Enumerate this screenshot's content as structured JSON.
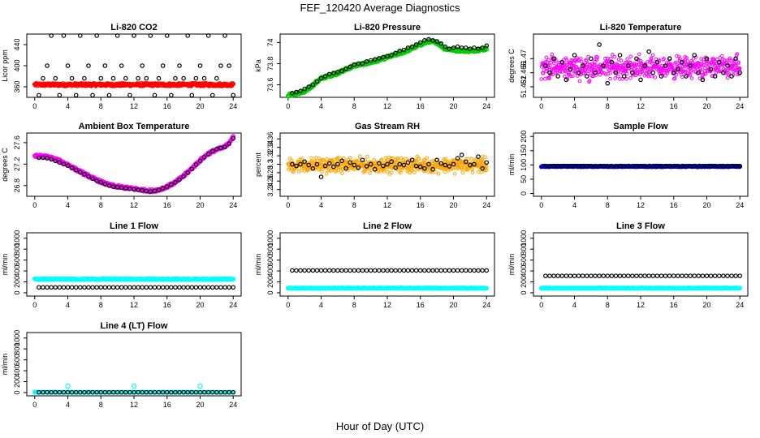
{
  "figure": {
    "title": "FEF_120420  Average Diagnostics",
    "xlabel": "Hour of Day (UTC)"
  },
  "chart_data": [
    {
      "type": "scatter",
      "title": "Li-820 CO2",
      "xlabel": "",
      "ylabel": "Licor ppm",
      "xlim": [
        0,
        24
      ],
      "ylim": [
        340,
        460
      ],
      "xticks": [
        0,
        4,
        8,
        12,
        16,
        20,
        24
      ],
      "yticks": [
        360,
        400,
        440
      ],
      "series": [
        {
          "name": "raw",
          "color": "#ff0000",
          "style": "dense",
          "band_center": 364,
          "band_width": 5
        },
        {
          "name": "average",
          "color": "#000000",
          "style": "circles",
          "x": [
            0.5,
            1,
            1.5,
            2,
            2.5,
            3,
            3.5,
            4,
            4.5,
            5,
            5.5,
            6,
            6.5,
            7,
            7.5,
            8,
            8.5,
            9,
            9.5,
            10,
            10.5,
            11,
            11.5,
            12,
            12.5,
            13,
            13.5,
            14,
            14.5,
            15,
            15.5,
            16,
            16.5,
            17,
            17.5,
            18,
            18.5,
            19,
            19.5,
            20,
            20.5,
            21,
            21.5,
            22,
            22.5,
            23,
            23.5,
            24
          ],
          "y": [
            344,
            376,
            400,
            457,
            376,
            344,
            457,
            400,
            376,
            344,
            457,
            376,
            400,
            344,
            457,
            376,
            400,
            344,
            376,
            457,
            400,
            376,
            344,
            457,
            376,
            400,
            376,
            457,
            344,
            376,
            400,
            457,
            344,
            376,
            400,
            376,
            457,
            344,
            376,
            400,
            376,
            457,
            344,
            376,
            400,
            457,
            400,
            344
          ]
        }
      ]
    },
    {
      "type": "scatter",
      "title": "Li-820 Pressure",
      "xlabel": "",
      "ylabel": "kPa",
      "xlim": [
        0,
        24
      ],
      "ylim": [
        73.48,
        74.08
      ],
      "xticks": [
        0,
        4,
        8,
        12,
        16,
        20,
        24
      ],
      "yticks": [
        73.6,
        73.8,
        74.0
      ],
      "series": [
        {
          "name": "raw",
          "color": "#00cc00",
          "style": "dense",
          "x": [
            0,
            2,
            4,
            6,
            8,
            10,
            12,
            14,
            16,
            17,
            18,
            19,
            20,
            22,
            24
          ],
          "y": [
            73.5,
            73.53,
            73.66,
            73.71,
            73.78,
            73.81,
            73.86,
            73.91,
            73.98,
            74.01,
            74.0,
            73.94,
            73.93,
            73.92,
            73.94
          ]
        },
        {
          "name": "average",
          "color": "#000000",
          "style": "circles",
          "x": [
            0.5,
            1,
            1.5,
            2,
            2.5,
            3,
            3.5,
            4,
            4.5,
            5,
            5.5,
            6,
            6.5,
            7,
            7.5,
            8,
            8.5,
            9,
            9.5,
            10,
            10.5,
            11,
            11.5,
            12,
            12.5,
            13,
            13.5,
            14,
            14.5,
            15,
            15.5,
            16,
            16.5,
            17,
            17.5,
            18,
            18.5,
            19,
            19.5,
            20,
            20.5,
            21,
            21.5,
            22,
            22.5,
            23,
            23.5,
            24
          ],
          "y": [
            73.52,
            73.53,
            73.54,
            73.56,
            73.58,
            73.6,
            73.63,
            73.66,
            73.68,
            73.7,
            73.71,
            73.72,
            73.73,
            73.75,
            73.77,
            73.79,
            73.8,
            73.8,
            73.82,
            73.83,
            73.84,
            73.85,
            73.86,
            73.87,
            73.88,
            73.9,
            73.92,
            73.93,
            73.95,
            73.96,
            73.98,
            74.0,
            74.02,
            74.03,
            74.02,
            74.01,
            73.99,
            73.96,
            73.94,
            73.95,
            73.96,
            73.95,
            73.95,
            73.94,
            73.95,
            73.94,
            73.95,
            73.97
          ]
        }
      ]
    },
    {
      "type": "scatter",
      "title": "Li-820 Temperature",
      "xlabel": "",
      "ylabel": "degrees C",
      "xlim": [
        0,
        24
      ],
      "ylim": [
        51.459,
        51.477
      ],
      "xticks": [
        0,
        4,
        8,
        12,
        16,
        20,
        24
      ],
      "yticks": [
        51.462,
        51.466,
        51.47
      ],
      "series": [
        {
          "name": "raw",
          "color": "#ff00ff",
          "style": "scattercloud",
          "center": 51.4675,
          "spread": 0.004
        },
        {
          "name": "average",
          "color": "#000000",
          "style": "circles",
          "x": [
            0.5,
            1,
            1.5,
            2,
            2.5,
            3,
            3.5,
            4,
            4.5,
            5,
            5.5,
            6,
            6.5,
            7,
            7.5,
            8,
            8.5,
            9,
            9.5,
            10,
            10.5,
            11,
            11.5,
            12,
            12.5,
            13,
            13.5,
            14,
            14.5,
            15,
            15.5,
            16,
            16.5,
            17,
            17.5,
            18,
            18.5,
            19,
            19.5,
            20,
            20.5,
            21,
            21.5,
            22,
            22.5,
            23,
            23.5,
            24
          ],
          "y": [
            51.468,
            51.466,
            51.47,
            51.465,
            51.469,
            51.464,
            51.467,
            51.471,
            51.466,
            51.468,
            51.465,
            51.47,
            51.466,
            51.474,
            51.468,
            51.463,
            51.469,
            51.466,
            51.471,
            51.465,
            51.468,
            51.466,
            51.47,
            51.464,
            51.468,
            51.472,
            51.466,
            51.469,
            51.465,
            51.468,
            51.47,
            51.466,
            51.467,
            51.469,
            51.465,
            51.468,
            51.471,
            51.466,
            51.464,
            51.47,
            51.467,
            51.465,
            51.469,
            51.466,
            51.468,
            51.465,
            51.47,
            51.466
          ]
        }
      ]
    },
    {
      "type": "scatter",
      "title": "Ambient Box Temperature",
      "xlabel": "",
      "ylabel": "degrees C",
      "xlim": [
        0,
        24
      ],
      "ylim": [
        26.6,
        27.78
      ],
      "xticks": [
        0,
        4,
        8,
        12,
        16,
        20,
        24
      ],
      "yticks": [
        26.8,
        27.2,
        27.6
      ],
      "series": [
        {
          "name": "raw",
          "color": "#ff00ff",
          "style": "dense",
          "x": [
            0,
            1,
            2,
            3,
            4,
            5,
            6,
            7,
            8,
            9,
            10,
            11,
            12,
            13,
            14,
            15,
            16,
            17,
            18,
            19,
            20,
            21,
            22,
            23,
            24
          ],
          "y": [
            27.35,
            27.35,
            27.32,
            27.26,
            27.19,
            27.1,
            27.02,
            26.94,
            26.87,
            26.81,
            26.78,
            26.76,
            26.74,
            26.72,
            26.7,
            26.72,
            26.78,
            26.86,
            26.98,
            27.12,
            27.27,
            27.4,
            27.47,
            27.52,
            27.7
          ]
        },
        {
          "name": "average",
          "color": "#000000",
          "style": "circles",
          "x": [
            0.5,
            1,
            1.5,
            2,
            2.5,
            3,
            3.5,
            4,
            4.5,
            5,
            5.5,
            6,
            6.5,
            7,
            7.5,
            8,
            8.5,
            9,
            9.5,
            10,
            10.5,
            11,
            11.5,
            12,
            12.5,
            13,
            13.5,
            14,
            14.5,
            15,
            15.5,
            16,
            16.5,
            17,
            17.5,
            18,
            18.5,
            19,
            19.5,
            20,
            20.5,
            21,
            21.5,
            22,
            22.5,
            23,
            23.5,
            24
          ],
          "y": [
            27.32,
            27.32,
            27.31,
            27.29,
            27.26,
            27.23,
            27.2,
            27.17,
            27.13,
            27.09,
            27.05,
            27.01,
            26.97,
            26.93,
            26.89,
            26.86,
            26.83,
            26.8,
            26.78,
            26.77,
            26.76,
            26.75,
            26.74,
            26.73,
            26.72,
            26.71,
            26.7,
            26.69,
            26.7,
            26.72,
            26.75,
            26.78,
            26.82,
            26.86,
            26.91,
            26.97,
            27.04,
            27.11,
            27.19,
            27.26,
            27.33,
            27.39,
            27.44,
            27.48,
            27.5,
            27.52,
            27.58,
            27.68
          ]
        }
      ]
    },
    {
      "type": "scatter",
      "title": "Gas Stream RH",
      "xlabel": "",
      "ylabel": "percent",
      "xlim": [
        0,
        24
      ],
      "ylim": [
        3.224,
        3.374
      ],
      "xticks": [
        0,
        4,
        8,
        12,
        16,
        20,
        24
      ],
      "yticks": [
        3.24,
        3.26,
        3.28,
        3.3,
        3.32,
        3.34,
        3.36
      ],
      "series": [
        {
          "name": "raw",
          "color": "#ffa500",
          "style": "scattercloud",
          "center": 3.298,
          "spread": 0.022
        },
        {
          "name": "average",
          "color": "#000000",
          "style": "circles",
          "x": [
            0.5,
            1,
            1.5,
            2,
            2.5,
            3,
            3.5,
            4,
            4.5,
            5,
            5.5,
            6,
            6.5,
            7,
            7.5,
            8,
            8.5,
            9,
            9.5,
            10,
            10.5,
            11,
            11.5,
            12,
            12.5,
            13,
            13.5,
            14,
            14.5,
            15,
            15.5,
            16,
            16.5,
            17,
            17.5,
            18,
            18.5,
            19,
            19.5,
            20,
            20.5,
            21,
            21.5,
            22,
            22.5,
            23,
            23.5,
            24
          ],
          "y": [
            3.3,
            3.296,
            3.3,
            3.306,
            3.298,
            3.29,
            3.3,
            3.27,
            3.296,
            3.302,
            3.294,
            3.3,
            3.308,
            3.29,
            3.304,
            3.298,
            3.292,
            3.31,
            3.295,
            3.3,
            3.288,
            3.302,
            3.296,
            3.3,
            3.306,
            3.292,
            3.3,
            3.298,
            3.304,
            3.31,
            3.296,
            3.294,
            3.29,
            3.3,
            3.288,
            3.31,
            3.302,
            3.298,
            3.295,
            3.3,
            3.314,
            3.322,
            3.306,
            3.298,
            3.3,
            3.318,
            3.29,
            3.304
          ]
        }
      ]
    },
    {
      "type": "scatter",
      "title": "Sample Flow",
      "xlabel": "",
      "ylabel": "ml/min",
      "xlim": [
        0,
        24
      ],
      "ylim": [
        -10,
        212
      ],
      "xticks": [
        0,
        4,
        8,
        12,
        16,
        20,
        24
      ],
      "yticks": [
        0,
        50,
        100,
        150,
        200
      ],
      "series": [
        {
          "name": "raw",
          "color": "#0000cc",
          "style": "dense",
          "band_center": 95,
          "band_width": 3
        },
        {
          "name": "average",
          "color": "#000000",
          "style": "circles",
          "constant": 96
        }
      ]
    },
    {
      "type": "scatter",
      "title": "Line 1 Flow",
      "xlabel": "",
      "ylabel": "ml/min",
      "xlim": [
        0,
        24
      ],
      "ylim": [
        -60,
        1100
      ],
      "xticks": [
        0,
        4,
        8,
        12,
        16,
        20,
        24
      ],
      "yticks": [
        0,
        200,
        400,
        600,
        800,
        1000
      ],
      "series": [
        {
          "name": "raw_a",
          "color": "#00ffff",
          "style": "dense",
          "band_center": 250,
          "band_width": 20
        },
        {
          "name": "average",
          "color": "#000000",
          "style": "circles",
          "constant": 100
        }
      ]
    },
    {
      "type": "scatter",
      "title": "Line 2 Flow",
      "xlabel": "",
      "ylabel": "ml/min",
      "xlim": [
        0,
        24
      ],
      "ylim": [
        -60,
        1100
      ],
      "xticks": [
        0,
        4,
        8,
        12,
        16,
        20,
        24
      ],
      "yticks": [
        0,
        200,
        400,
        600,
        800,
        1000
      ],
      "series": [
        {
          "name": "raw_a",
          "color": "#00ffff",
          "style": "dense",
          "band_center": 85,
          "band_width": 10
        },
        {
          "name": "average",
          "color": "#000000",
          "style": "circles",
          "constant": 410
        }
      ]
    },
    {
      "type": "scatter",
      "title": "Line 3 Flow",
      "xlabel": "",
      "ylabel": "ml/min",
      "xlim": [
        0,
        24
      ],
      "ylim": [
        -60,
        1100
      ],
      "xticks": [
        0,
        4,
        8,
        12,
        16,
        20,
        24
      ],
      "yticks": [
        0,
        200,
        400,
        600,
        800,
        1000
      ],
      "series": [
        {
          "name": "raw_a",
          "color": "#00ffff",
          "style": "dense",
          "band_center": 85,
          "band_width": 10
        },
        {
          "name": "average",
          "color": "#000000",
          "style": "circles",
          "constant": 310
        }
      ]
    },
    {
      "type": "scatter",
      "title": "Line 4 (LT) Flow",
      "xlabel": "",
      "ylabel": "ml/min",
      "xlim": [
        0,
        24
      ],
      "ylim": [
        -60,
        1100
      ],
      "xticks": [
        0,
        4,
        8,
        12,
        16,
        20,
        24
      ],
      "yticks": [
        0,
        200,
        400,
        600,
        800,
        1000
      ],
      "series": [
        {
          "name": "raw_a",
          "color": "#00ffff",
          "style": "dense",
          "band_center": 5,
          "band_width": 6,
          "spikes": [
            {
              "x": 4,
              "y": 120
            },
            {
              "x": 12,
              "y": 120
            },
            {
              "x": 20,
              "y": 120
            }
          ]
        },
        {
          "name": "average",
          "color": "#000000",
          "style": "circles",
          "constant": 5
        }
      ]
    }
  ]
}
